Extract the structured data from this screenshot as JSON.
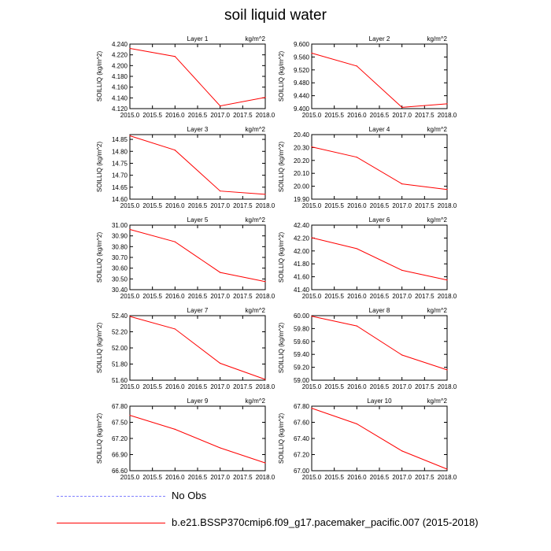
{
  "title": "soil liquid water",
  "legend": {
    "obs_label": "No Obs",
    "obs_color": "#8080ff",
    "run_label": "b.e21.BSSP370cmip6.f09_g17.pacemaker_pacific.007 (2015-2018)",
    "run_color": "#ff0000"
  },
  "chart_data": [
    {
      "type": "line",
      "title": "Layer 1",
      "units": "kg/m^2",
      "ylabel": "SOILLIQ  (kg/m^2)",
      "x": [
        2015.0,
        2016.0,
        2017.0,
        2018.0
      ],
      "y": [
        4.232,
        4.217,
        4.125,
        4.141
      ],
      "xlim": [
        2015.0,
        2018.0
      ],
      "xticks": [
        "2015.0",
        "2015.5",
        "2016.0",
        "2016.5",
        "2017.0",
        "2017.5",
        "2018.0"
      ],
      "ylim": [
        4.12,
        4.24
      ],
      "yticks": [
        "4.120",
        "4.140",
        "4.160",
        "4.180",
        "4.200",
        "4.220",
        "4.240"
      ]
    },
    {
      "type": "line",
      "title": "Layer 2",
      "units": "kg/m^2",
      "ylabel": "SOILLIQ  (kg/m^2)",
      "x": [
        2015.0,
        2016.0,
        2017.0,
        2018.0
      ],
      "y": [
        9.572,
        9.532,
        9.404,
        9.415
      ],
      "xlim": [
        2015.0,
        2018.0
      ],
      "xticks": [
        "2015.0",
        "2015.5",
        "2016.0",
        "2016.5",
        "2017.0",
        "2017.5",
        "2018.0"
      ],
      "ylim": [
        9.4,
        9.6
      ],
      "yticks": [
        "9.400",
        "9.440",
        "9.480",
        "9.520",
        "9.560",
        "9.600"
      ]
    },
    {
      "type": "line",
      "title": "Layer 3",
      "units": "kg/m^2",
      "ylabel": "SOILLIQ  (kg/m^2)",
      "x": [
        2015.0,
        2016.0,
        2017.0,
        2018.0
      ],
      "y": [
        14.865,
        14.805,
        14.634,
        14.62
      ],
      "xlim": [
        2015.0,
        2018.0
      ],
      "xticks": [
        "2015.0",
        "2015.5",
        "2016.0",
        "2016.5",
        "2017.0",
        "2017.5",
        "2018.0"
      ],
      "ylim": [
        14.6,
        14.87
      ],
      "yticks": [
        "14.60",
        "14.65",
        "14.70",
        "14.75",
        "14.80",
        "14.85"
      ]
    },
    {
      "type": "line",
      "title": "Layer 4",
      "units": "kg/m^2",
      "ylabel": "SOILLIQ  (kg/m^2)",
      "x": [
        2015.0,
        2016.0,
        2017.0,
        2018.0
      ],
      "y": [
        20.305,
        20.225,
        20.018,
        19.975
      ],
      "xlim": [
        2015.0,
        2018.0
      ],
      "xticks": [
        "2015.0",
        "2015.5",
        "2016.0",
        "2016.5",
        "2017.0",
        "2017.5",
        "2018.0"
      ],
      "ylim": [
        19.9,
        20.4
      ],
      "yticks": [
        "19.90",
        "20.00",
        "20.10",
        "20.20",
        "20.30",
        "20.40"
      ]
    },
    {
      "type": "line",
      "title": "Layer 5",
      "units": "kg/m^2",
      "ylabel": "SOILLIQ  (kg/m^2)",
      "x": [
        2015.0,
        2016.0,
        2017.0,
        2018.0
      ],
      "y": [
        30.96,
        30.845,
        30.56,
        30.475
      ],
      "xlim": [
        2015.0,
        2018.0
      ],
      "xticks": [
        "2015.0",
        "2015.5",
        "2016.0",
        "2016.5",
        "2017.0",
        "2017.5",
        "2018.0"
      ],
      "ylim": [
        30.4,
        31.0
      ],
      "yticks": [
        "30.40",
        "30.50",
        "30.60",
        "30.70",
        "30.80",
        "30.90",
        "31.00"
      ]
    },
    {
      "type": "line",
      "title": "Layer 6",
      "units": "kg/m^2",
      "ylabel": "SOILLIQ  (kg/m^2)",
      "x": [
        2015.0,
        2016.0,
        2017.0,
        2018.0
      ],
      "y": [
        42.205,
        42.035,
        41.7,
        41.55
      ],
      "xlim": [
        2015.0,
        2018.0
      ],
      "xticks": [
        "2015.0",
        "2015.5",
        "2016.0",
        "2016.5",
        "2017.0",
        "2017.5",
        "2018.0"
      ],
      "ylim": [
        41.4,
        42.4
      ],
      "yticks": [
        "41.40",
        "41.60",
        "41.80",
        "42.00",
        "42.20",
        "42.40"
      ]
    },
    {
      "type": "line",
      "title": "Layer 7",
      "units": "kg/m^2",
      "ylabel": "SOILLIQ  (kg/m^2)",
      "x": [
        2015.0,
        2016.0,
        2017.0,
        2018.0
      ],
      "y": [
        52.39,
        52.235,
        51.81,
        51.61
      ],
      "xlim": [
        2015.0,
        2018.0
      ],
      "xticks": [
        "2015.0",
        "2015.5",
        "2016.0",
        "2016.5",
        "2017.0",
        "2017.5",
        "2018.0"
      ],
      "ylim": [
        51.6,
        52.4
      ],
      "yticks": [
        "51.60",
        "51.80",
        "52.00",
        "52.20",
        "52.40"
      ]
    },
    {
      "type": "line",
      "title": "Layer 8",
      "units": "kg/m^2",
      "ylabel": "SOILLIQ  (kg/m^2)",
      "x": [
        2015.0,
        2016.0,
        2017.0,
        2018.0
      ],
      "y": [
        59.99,
        59.84,
        59.39,
        59.16
      ],
      "xlim": [
        2015.0,
        2018.0
      ],
      "xticks": [
        "2015.0",
        "2015.5",
        "2016.0",
        "2016.5",
        "2017.0",
        "2017.5",
        "2018.0"
      ],
      "ylim": [
        59.0,
        60.0
      ],
      "yticks": [
        "59.00",
        "59.20",
        "59.40",
        "59.60",
        "59.80",
        "60.00"
      ]
    },
    {
      "type": "line",
      "title": "Layer 9",
      "units": "kg/m^2",
      "ylabel": "SOILLIQ  (kg/m^2)",
      "x": [
        2015.0,
        2016.0,
        2017.0,
        2018.0
      ],
      "y": [
        67.63,
        67.37,
        67.025,
        66.745
      ],
      "xlim": [
        2015.0,
        2018.0
      ],
      "xticks": [
        "2015.0",
        "2015.5",
        "2016.0",
        "2016.5",
        "2017.0",
        "2017.5",
        "2018.0"
      ],
      "ylim": [
        66.6,
        67.8
      ],
      "yticks": [
        "66.60",
        "66.90",
        "67.20",
        "67.50",
        "67.80"
      ]
    },
    {
      "type": "line",
      "title": "Layer 10",
      "units": "kg/m^2",
      "ylabel": "SOILLIQ  (kg/m^2)",
      "x": [
        2015.0,
        2016.0,
        2017.0,
        2018.0
      ],
      "y": [
        67.775,
        67.58,
        67.245,
        67.02
      ],
      "xlim": [
        2015.0,
        2018.0
      ],
      "xticks": [
        "2015.0",
        "2015.5",
        "2016.0",
        "2016.5",
        "2017.0",
        "2017.5",
        "2018.0"
      ],
      "ylim": [
        67.0,
        67.8
      ],
      "yticks": [
        "67.00",
        "67.20",
        "67.40",
        "67.60",
        "67.80"
      ]
    }
  ]
}
